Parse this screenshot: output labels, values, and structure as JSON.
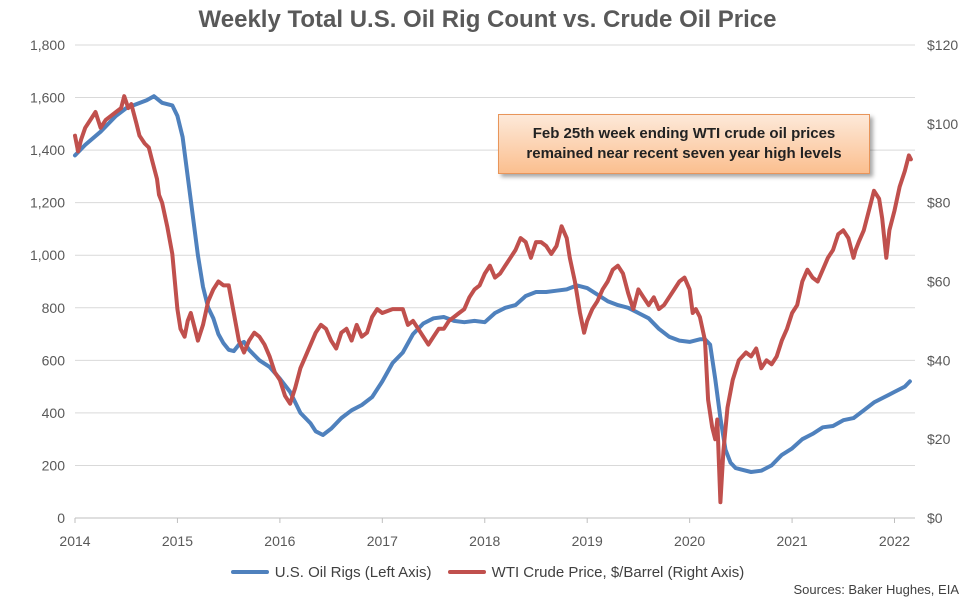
{
  "chart_data": {
    "type": "line",
    "title": "Weekly Total U.S. Oil Rig Count vs. Crude Oil Price",
    "x_ticks": [
      "2014",
      "2015",
      "2016",
      "2017",
      "2018",
      "2019",
      "2020",
      "2021",
      "2022"
    ],
    "y_left": {
      "min": 0,
      "max": 1800,
      "step": 200,
      "ticks": [
        "0",
        "200",
        "400",
        "600",
        "800",
        "1,000",
        "1,200",
        "1,400",
        "1,600",
        "1,800"
      ]
    },
    "y_right": {
      "min": 0,
      "max": 120,
      "step": 20,
      "ticks": [
        "$0",
        "$20",
        "$40",
        "$60",
        "$80",
        "$100",
        "$120"
      ]
    },
    "grid": "horizontal",
    "legend_position": "bottom",
    "series": [
      {
        "name": "U.S. Oil Rigs (Left Axis)",
        "axis": "left",
        "color": "#4f81bd",
        "points": [
          [
            2014.0,
            1380
          ],
          [
            2014.1,
            1420
          ],
          [
            2014.25,
            1470
          ],
          [
            2014.4,
            1530
          ],
          [
            2014.5,
            1560
          ],
          [
            2014.6,
            1575
          ],
          [
            2014.7,
            1590
          ],
          [
            2014.77,
            1605
          ],
          [
            2014.85,
            1580
          ],
          [
            2014.95,
            1570
          ],
          [
            2015.0,
            1530
          ],
          [
            2015.05,
            1450
          ],
          [
            2015.1,
            1300
          ],
          [
            2015.15,
            1150
          ],
          [
            2015.2,
            1000
          ],
          [
            2015.25,
            880
          ],
          [
            2015.3,
            800
          ],
          [
            2015.35,
            760
          ],
          [
            2015.4,
            700
          ],
          [
            2015.45,
            665
          ],
          [
            2015.5,
            640
          ],
          [
            2015.55,
            635
          ],
          [
            2015.6,
            660
          ],
          [
            2015.65,
            670
          ],
          [
            2015.7,
            640
          ],
          [
            2015.75,
            620
          ],
          [
            2015.8,
            600
          ],
          [
            2015.9,
            575
          ],
          [
            2016.0,
            530
          ],
          [
            2016.1,
            480
          ],
          [
            2016.2,
            400
          ],
          [
            2016.3,
            360
          ],
          [
            2016.35,
            330
          ],
          [
            2016.42,
            316
          ],
          [
            2016.5,
            340
          ],
          [
            2016.6,
            380
          ],
          [
            2016.7,
            410
          ],
          [
            2016.8,
            430
          ],
          [
            2016.9,
            460
          ],
          [
            2017.0,
            520
          ],
          [
            2017.1,
            590
          ],
          [
            2017.2,
            630
          ],
          [
            2017.3,
            700
          ],
          [
            2017.4,
            740
          ],
          [
            2017.5,
            760
          ],
          [
            2017.6,
            765
          ],
          [
            2017.7,
            750
          ],
          [
            2017.8,
            745
          ],
          [
            2017.9,
            750
          ],
          [
            2018.0,
            745
          ],
          [
            2018.1,
            780
          ],
          [
            2018.2,
            800
          ],
          [
            2018.3,
            810
          ],
          [
            2018.4,
            845
          ],
          [
            2018.5,
            860
          ],
          [
            2018.6,
            860
          ],
          [
            2018.7,
            865
          ],
          [
            2018.8,
            870
          ],
          [
            2018.9,
            885
          ],
          [
            2019.0,
            875
          ],
          [
            2019.1,
            850
          ],
          [
            2019.2,
            825
          ],
          [
            2019.3,
            810
          ],
          [
            2019.4,
            800
          ],
          [
            2019.5,
            780
          ],
          [
            2019.6,
            760
          ],
          [
            2019.7,
            720
          ],
          [
            2019.8,
            690
          ],
          [
            2019.9,
            675
          ],
          [
            2020.0,
            670
          ],
          [
            2020.1,
            680
          ],
          [
            2020.15,
            680
          ],
          [
            2020.2,
            660
          ],
          [
            2020.25,
            530
          ],
          [
            2020.3,
            380
          ],
          [
            2020.35,
            260
          ],
          [
            2020.4,
            210
          ],
          [
            2020.45,
            190
          ],
          [
            2020.5,
            185
          ],
          [
            2020.6,
            175
          ],
          [
            2020.7,
            180
          ],
          [
            2020.8,
            200
          ],
          [
            2020.9,
            240
          ],
          [
            2021.0,
            265
          ],
          [
            2021.1,
            300
          ],
          [
            2021.2,
            320
          ],
          [
            2021.3,
            345
          ],
          [
            2021.4,
            350
          ],
          [
            2021.5,
            372
          ],
          [
            2021.6,
            380
          ],
          [
            2021.7,
            410
          ],
          [
            2021.8,
            440
          ],
          [
            2021.9,
            460
          ],
          [
            2022.0,
            480
          ],
          [
            2022.1,
            500
          ],
          [
            2022.15,
            520
          ]
        ]
      },
      {
        "name": "WTI Crude Price, $/Barrel (Right Axis)",
        "axis": "right",
        "color": "#c0504d",
        "points": [
          [
            2014.0,
            97
          ],
          [
            2014.03,
            93
          ],
          [
            2014.06,
            96
          ],
          [
            2014.1,
            99
          ],
          [
            2014.15,
            101
          ],
          [
            2014.2,
            103
          ],
          [
            2014.25,
            99
          ],
          [
            2014.3,
            101
          ],
          [
            2014.35,
            102
          ],
          [
            2014.4,
            103
          ],
          [
            2014.45,
            104
          ],
          [
            2014.48,
            107
          ],
          [
            2014.52,
            104
          ],
          [
            2014.55,
            105
          ],
          [
            2014.6,
            100
          ],
          [
            2014.63,
            97
          ],
          [
            2014.68,
            95
          ],
          [
            2014.72,
            94
          ],
          [
            2014.75,
            91
          ],
          [
            2014.8,
            86
          ],
          [
            2014.82,
            82
          ],
          [
            2014.85,
            80
          ],
          [
            2014.9,
            74
          ],
          [
            2014.95,
            67
          ],
          [
            2015.0,
            53
          ],
          [
            2015.03,
            48
          ],
          [
            2015.07,
            46
          ],
          [
            2015.1,
            50
          ],
          [
            2015.13,
            52
          ],
          [
            2015.17,
            48
          ],
          [
            2015.2,
            45
          ],
          [
            2015.25,
            49
          ],
          [
            2015.3,
            55
          ],
          [
            2015.35,
            58
          ],
          [
            2015.4,
            60
          ],
          [
            2015.45,
            59
          ],
          [
            2015.5,
            59
          ],
          [
            2015.55,
            52
          ],
          [
            2015.6,
            45
          ],
          [
            2015.65,
            42
          ],
          [
            2015.7,
            45
          ],
          [
            2015.75,
            47
          ],
          [
            2015.8,
            46
          ],
          [
            2015.85,
            44
          ],
          [
            2015.9,
            41
          ],
          [
            2015.95,
            37
          ],
          [
            2016.0,
            35
          ],
          [
            2016.05,
            31
          ],
          [
            2016.1,
            29
          ],
          [
            2016.15,
            33
          ],
          [
            2016.2,
            38
          ],
          [
            2016.25,
            41
          ],
          [
            2016.3,
            44
          ],
          [
            2016.35,
            47
          ],
          [
            2016.4,
            49
          ],
          [
            2016.45,
            48
          ],
          [
            2016.5,
            45
          ],
          [
            2016.55,
            43
          ],
          [
            2016.6,
            47
          ],
          [
            2016.65,
            48
          ],
          [
            2016.7,
            45
          ],
          [
            2016.75,
            49
          ],
          [
            2016.8,
            46
          ],
          [
            2016.85,
            47
          ],
          [
            2016.9,
            51
          ],
          [
            2016.95,
            53
          ],
          [
            2017.0,
            52
          ],
          [
            2017.1,
            53
          ],
          [
            2017.2,
            53
          ],
          [
            2017.25,
            49
          ],
          [
            2017.3,
            50
          ],
          [
            2017.35,
            48
          ],
          [
            2017.4,
            46
          ],
          [
            2017.45,
            44
          ],
          [
            2017.5,
            46
          ],
          [
            2017.55,
            48
          ],
          [
            2017.6,
            48
          ],
          [
            2017.65,
            50
          ],
          [
            2017.7,
            51
          ],
          [
            2017.75,
            52
          ],
          [
            2017.8,
            53
          ],
          [
            2017.85,
            56
          ],
          [
            2017.9,
            58
          ],
          [
            2017.95,
            59
          ],
          [
            2018.0,
            62
          ],
          [
            2018.05,
            64
          ],
          [
            2018.1,
            61
          ],
          [
            2018.15,
            62
          ],
          [
            2018.2,
            64
          ],
          [
            2018.25,
            66
          ],
          [
            2018.3,
            68
          ],
          [
            2018.35,
            71
          ],
          [
            2018.4,
            70
          ],
          [
            2018.45,
            66
          ],
          [
            2018.5,
            70
          ],
          [
            2018.55,
            70
          ],
          [
            2018.6,
            69
          ],
          [
            2018.65,
            67
          ],
          [
            2018.7,
            69
          ],
          [
            2018.75,
            74
          ],
          [
            2018.8,
            71
          ],
          [
            2018.83,
            66
          ],
          [
            2018.88,
            60
          ],
          [
            2018.93,
            52
          ],
          [
            2018.97,
            47
          ],
          [
            2019.0,
            50
          ],
          [
            2019.05,
            53
          ],
          [
            2019.1,
            55
          ],
          [
            2019.15,
            58
          ],
          [
            2019.2,
            60
          ],
          [
            2019.25,
            63
          ],
          [
            2019.3,
            64
          ],
          [
            2019.35,
            62
          ],
          [
            2019.4,
            57
          ],
          [
            2019.45,
            53
          ],
          [
            2019.5,
            58
          ],
          [
            2019.55,
            56
          ],
          [
            2019.6,
            54
          ],
          [
            2019.65,
            56
          ],
          [
            2019.7,
            53
          ],
          [
            2019.75,
            54
          ],
          [
            2019.8,
            56
          ],
          [
            2019.85,
            58
          ],
          [
            2019.9,
            60
          ],
          [
            2019.95,
            61
          ],
          [
            2020.0,
            58
          ],
          [
            2020.03,
            52
          ],
          [
            2020.06,
            53
          ],
          [
            2020.1,
            51
          ],
          [
            2020.15,
            45
          ],
          [
            2020.18,
            30
          ],
          [
            2020.22,
            23
          ],
          [
            2020.25,
            20
          ],
          [
            2020.27,
            25
          ],
          [
            2020.3,
            4
          ],
          [
            2020.33,
            17
          ],
          [
            2020.37,
            28
          ],
          [
            2020.42,
            35
          ],
          [
            2020.48,
            40
          ],
          [
            2020.55,
            42
          ],
          [
            2020.6,
            41
          ],
          [
            2020.65,
            43
          ],
          [
            2020.7,
            38
          ],
          [
            2020.75,
            40
          ],
          [
            2020.8,
            39
          ],
          [
            2020.85,
            41
          ],
          [
            2020.9,
            45
          ],
          [
            2020.95,
            48
          ],
          [
            2021.0,
            52
          ],
          [
            2021.05,
            54
          ],
          [
            2021.1,
            60
          ],
          [
            2021.15,
            63
          ],
          [
            2021.2,
            61
          ],
          [
            2021.25,
            60
          ],
          [
            2021.3,
            63
          ],
          [
            2021.35,
            66
          ],
          [
            2021.4,
            68
          ],
          [
            2021.45,
            72
          ],
          [
            2021.5,
            73
          ],
          [
            2021.55,
            71
          ],
          [
            2021.6,
            66
          ],
          [
            2021.62,
            68
          ],
          [
            2021.65,
            70
          ],
          [
            2021.7,
            73
          ],
          [
            2021.75,
            78
          ],
          [
            2021.8,
            83
          ],
          [
            2021.85,
            81
          ],
          [
            2021.88,
            76
          ],
          [
            2021.92,
            66
          ],
          [
            2021.95,
            73
          ],
          [
            2022.0,
            78
          ],
          [
            2022.05,
            84
          ],
          [
            2022.1,
            88
          ],
          [
            2022.14,
            92
          ],
          [
            2022.16,
            91
          ]
        ]
      }
    ]
  },
  "annotation": {
    "line1": "Feb 25th week ending WTI crude oil prices",
    "line2": "remained near recent seven year high levels"
  },
  "legend": {
    "rigs_label": "U.S. Oil Rigs (Left Axis)",
    "wti_label": "WTI Crude Price, $/Barrel (Right Axis)"
  },
  "source_text": "Sources: Baker Hughes, EIA"
}
